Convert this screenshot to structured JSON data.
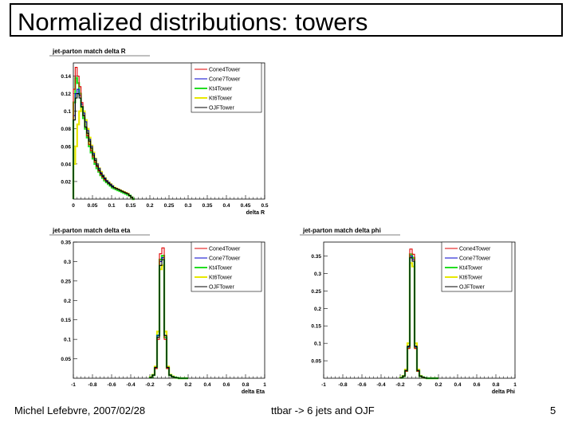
{
  "slide": {
    "title": "Normalized distributions: towers",
    "footer_left": "Michel Lefebvre, 2007/02/28",
    "footer_center": "ttbar -> 6 jets and OJF",
    "page_number": "5"
  },
  "legend": {
    "entries": [
      "Cone4Tower",
      "Cone7Tower",
      "Kt4Tower",
      "Kt6Tower",
      "OJFTower"
    ],
    "colors": [
      "#e00000",
      "#0000cc",
      "#22dd22",
      "#e8e800",
      "#000000"
    ]
  },
  "chart_data": [
    {
      "type": "histogram",
      "title": "jet-parton match delta R",
      "xlabel": "delta R",
      "ylabel": "",
      "xlim": [
        0,
        0.5
      ],
      "ylim": [
        0,
        0.155
      ],
      "xticks": [
        0,
        0.05,
        0.1,
        0.15,
        0.2,
        0.25,
        0.3,
        0.35,
        0.4,
        0.45,
        0.5
      ],
      "xtick_labels": [
        "0",
        "0.05",
        "0.1",
        "0.15",
        "0.2",
        "0.25",
        "0.3",
        "0.35",
        "0.4",
        "0.45",
        "0.5"
      ],
      "yticks": [
        0.02,
        0.04,
        0.06,
        0.08,
        0.1,
        0.12,
        0.14
      ],
      "ytick_labels": [
        "0.02",
        "0.04",
        "0.06",
        "0.08",
        "0.1",
        "0.12",
        "0.14"
      ],
      "bin_edges_start": 0,
      "bin_width": 0.005,
      "series": [
        {
          "name": "Cone4Tower",
          "values": [
            0.125,
            0.15,
            0.14,
            0.128,
            0.11,
            0.095,
            0.082,
            0.072,
            0.062,
            0.055,
            0.048,
            0.042,
            0.037,
            0.032,
            0.028,
            0.025,
            0.022,
            0.02,
            0.018,
            0.016,
            0.014,
            0.013,
            0.012,
            0.011,
            0.01,
            0.009,
            0.008,
            0.007,
            0.006,
            0.004,
            0.002,
            0.0
          ]
        },
        {
          "name": "Cone7Tower",
          "values": [
            0.095,
            0.12,
            0.125,
            0.118,
            0.108,
            0.098,
            0.088,
            0.078,
            0.068,
            0.06,
            0.052,
            0.046,
            0.04,
            0.035,
            0.03,
            0.027,
            0.024,
            0.021,
            0.019,
            0.017,
            0.015,
            0.013,
            0.012,
            0.011,
            0.01,
            0.009,
            0.008,
            0.007,
            0.006,
            0.004,
            0.002,
            0.0
          ]
        },
        {
          "name": "Kt4Tower",
          "values": [
            0.11,
            0.138,
            0.132,
            0.12,
            0.105,
            0.092,
            0.08,
            0.07,
            0.06,
            0.053,
            0.046,
            0.04,
            0.035,
            0.031,
            0.027,
            0.024,
            0.021,
            0.019,
            0.017,
            0.015,
            0.013,
            0.012,
            0.011,
            0.01,
            0.009,
            0.008,
            0.007,
            0.006,
            0.005,
            0.004,
            0.002,
            0.0
          ]
        },
        {
          "name": "Kt6Tower",
          "values": [
            0.04,
            0.06,
            0.085,
            0.1,
            0.105,
            0.1,
            0.09,
            0.08,
            0.07,
            0.061,
            0.053,
            0.046,
            0.04,
            0.035,
            0.031,
            0.027,
            0.024,
            0.021,
            0.019,
            0.017,
            0.015,
            0.013,
            0.012,
            0.011,
            0.01,
            0.009,
            0.008,
            0.007,
            0.006,
            0.004,
            0.002,
            0.0
          ]
        },
        {
          "name": "OJFTower",
          "values": [
            0.09,
            0.115,
            0.12,
            0.115,
            0.105,
            0.095,
            0.082,
            0.075,
            0.066,
            0.058,
            0.05,
            0.044,
            0.038,
            0.033,
            0.029,
            0.026,
            0.023,
            0.02,
            0.018,
            0.016,
            0.014,
            0.013,
            0.012,
            0.011,
            0.01,
            0.009,
            0.008,
            0.007,
            0.006,
            0.004,
            0.002,
            0.0
          ]
        }
      ]
    },
    {
      "type": "histogram",
      "title": "jet-parton match delta eta",
      "xlabel": "delta Eta",
      "ylabel": "",
      "xlim": [
        -1,
        1
      ],
      "ylim": [
        0,
        0.35
      ],
      "xticks": [
        -1,
        -0.8,
        -0.6,
        -0.4,
        -0.2,
        0,
        0.2,
        0.4,
        0.6,
        0.8,
        1
      ],
      "xtick_labels": [
        "-1",
        "-0.8",
        "-0.6",
        "-0.4",
        "-0.2",
        "-0",
        "0.2",
        "0.4",
        "0.6",
        "0.8",
        "1"
      ],
      "yticks": [
        0.05,
        0.1,
        0.15,
        0.2,
        0.25,
        0.3,
        0.35
      ],
      "ytick_labels": [
        "0.05",
        "0.1",
        "0.15",
        "0.2",
        "0.25",
        "0.3",
        "0.35"
      ],
      "bin_edges_start": -0.2,
      "bin_width": 0.025,
      "series": [
        {
          "name": "Cone4Tower",
          "values": [
            0.002,
            0.008,
            0.025,
            0.1,
            0.32,
            0.335,
            0.1,
            0.025,
            0.008,
            0.004,
            0.002,
            0.001,
            0.0,
            0.0,
            0.0,
            0.0
          ]
        },
        {
          "name": "Cone7Tower",
          "values": [
            0.002,
            0.008,
            0.027,
            0.11,
            0.3,
            0.31,
            0.11,
            0.027,
            0.008,
            0.004,
            0.002,
            0.001,
            0.0,
            0.0,
            0.0,
            0.0
          ]
        },
        {
          "name": "Kt4Tower",
          "values": [
            0.002,
            0.008,
            0.026,
            0.11,
            0.305,
            0.315,
            0.105,
            0.026,
            0.008,
            0.004,
            0.002,
            0.001,
            0.0,
            0.0,
            0.0,
            0.0
          ]
        },
        {
          "name": "Kt6Tower",
          "values": [
            0.003,
            0.009,
            0.03,
            0.12,
            0.28,
            0.29,
            0.12,
            0.03,
            0.009,
            0.005,
            0.002,
            0.001,
            0.0,
            0.0,
            0.0,
            0.0
          ]
        },
        {
          "name": "OJFTower",
          "values": [
            0.002,
            0.008,
            0.028,
            0.105,
            0.29,
            0.305,
            0.11,
            0.028,
            0.008,
            0.004,
            0.002,
            0.001,
            0.0,
            0.0,
            0.0,
            0.0
          ]
        }
      ]
    },
    {
      "type": "histogram",
      "title": "jet-parton match delta phi",
      "xlabel": "delta Phi",
      "ylabel": "",
      "xlim": [
        -1,
        1
      ],
      "ylim": [
        0,
        0.39
      ],
      "xticks": [
        -1,
        -0.8,
        -0.6,
        -0.4,
        -0.2,
        0,
        0.2,
        0.4,
        0.6,
        0.8,
        1
      ],
      "xtick_labels": [
        "-1",
        "-0.8",
        "-0.6",
        "-0.4",
        "-0.2",
        "-0",
        "0.2",
        "0.4",
        "0.6",
        "0.8",
        "1"
      ],
      "yticks": [
        0.05,
        0.1,
        0.15,
        0.2,
        0.25,
        0.3,
        0.35
      ],
      "ytick_labels": [
        "0.05",
        "0.1",
        "0.15",
        "0.2",
        "0.25",
        "0.3",
        "0.35"
      ],
      "bin_edges_start": -0.2,
      "bin_width": 0.025,
      "series": [
        {
          "name": "Cone4Tower",
          "values": [
            0.001,
            0.006,
            0.02,
            0.085,
            0.37,
            0.355,
            0.085,
            0.02,
            0.006,
            0.003,
            0.001,
            0.0,
            0.0,
            0.0,
            0.0,
            0.0
          ]
        },
        {
          "name": "Cone7Tower",
          "values": [
            0.001,
            0.006,
            0.022,
            0.09,
            0.35,
            0.34,
            0.09,
            0.022,
            0.006,
            0.003,
            0.001,
            0.0,
            0.0,
            0.0,
            0.0,
            0.0
          ]
        },
        {
          "name": "Kt4Tower",
          "values": [
            0.001,
            0.006,
            0.021,
            0.088,
            0.355,
            0.345,
            0.088,
            0.021,
            0.006,
            0.003,
            0.001,
            0.0,
            0.0,
            0.0,
            0.0,
            0.0
          ]
        },
        {
          "name": "Kt6Tower",
          "values": [
            0.002,
            0.007,
            0.025,
            0.1,
            0.33,
            0.32,
            0.1,
            0.025,
            0.007,
            0.003,
            0.001,
            0.0,
            0.0,
            0.0,
            0.0,
            0.0
          ]
        },
        {
          "name": "OJFTower",
          "values": [
            0.001,
            0.006,
            0.022,
            0.092,
            0.345,
            0.335,
            0.092,
            0.022,
            0.006,
            0.003,
            0.001,
            0.0,
            0.0,
            0.0,
            0.0,
            0.0
          ]
        }
      ]
    }
  ]
}
